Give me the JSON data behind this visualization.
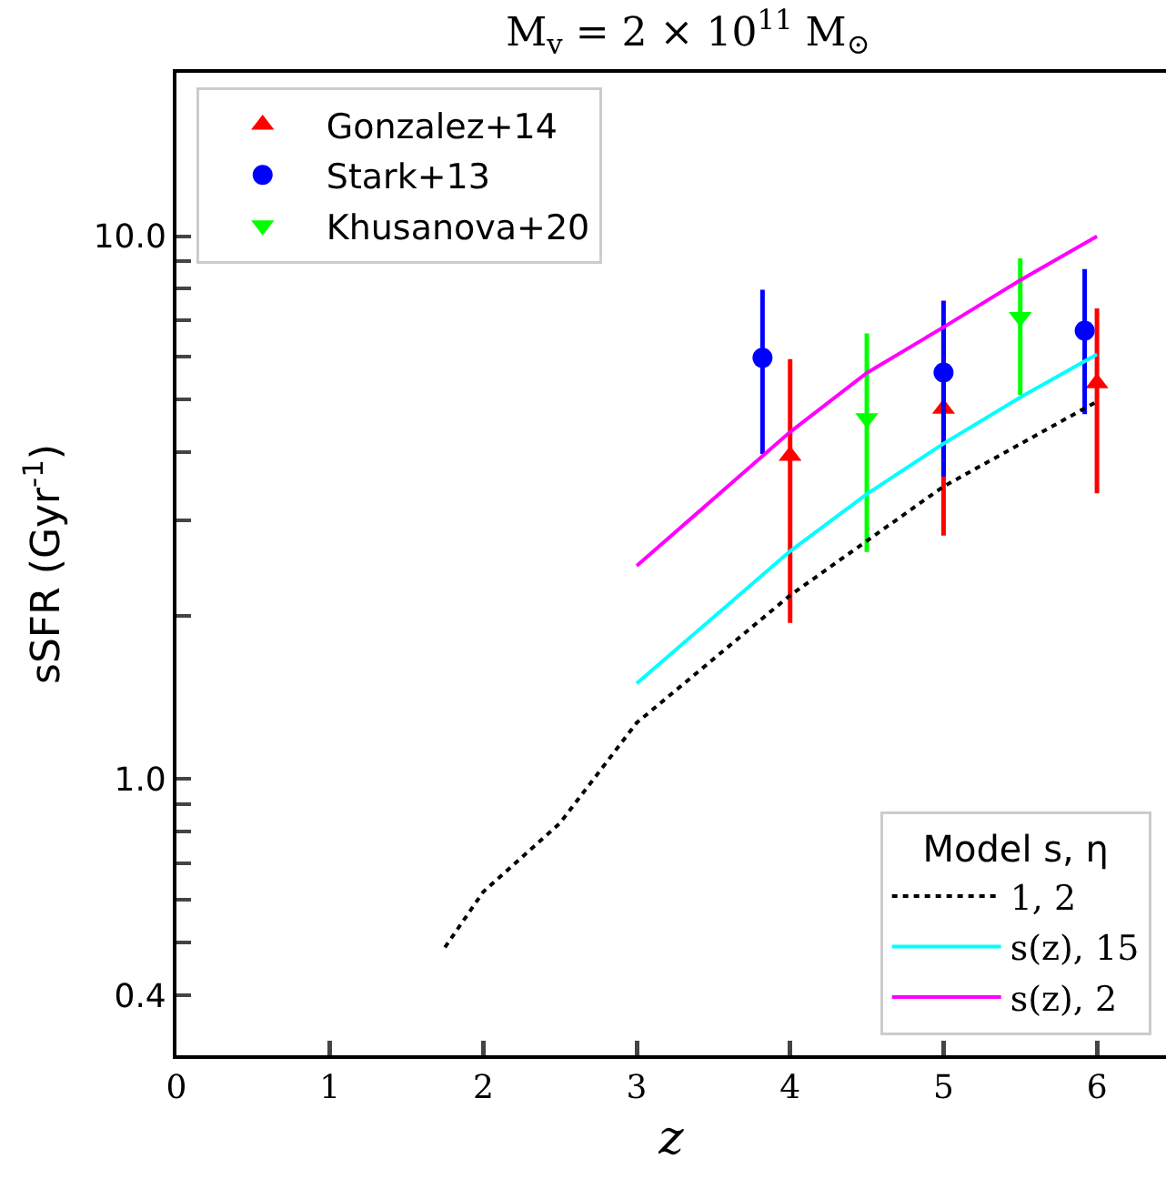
{
  "chart_data": {
    "type": "scatter",
    "title": "M$_{v}$ = 2 × 10$^{11}$ M$_{⊙}$",
    "xlabel": "z",
    "ylabel": "sSFR (Gyr$^{-1}$)",
    "legend_title": "Model s, η",
    "log": "y",
    "legend": "top left",
    "grid": false,
    "xlim": [
      0,
      6.45
    ],
    "xticks": [
      0,
      1,
      2,
      3,
      4,
      5,
      6
    ],
    "ylim": [
      0.31,
      20
    ],
    "yticks": [
      {
        "value": 0.4,
        "label": "0.4"
      },
      {
        "value": 0.5,
        "label": null
      },
      {
        "value": 0.6,
        "label": null
      },
      {
        "value": 0.7,
        "label": null
      },
      {
        "value": 0.8,
        "label": null
      },
      {
        "value": 0.9,
        "label": null
      },
      {
        "value": 1,
        "label": "1.0"
      },
      {
        "value": 2,
        "label": null
      },
      {
        "value": 3,
        "label": null
      },
      {
        "value": 4,
        "label": null
      },
      {
        "value": 5,
        "label": null
      },
      {
        "value": 6,
        "label": null
      },
      {
        "value": 7,
        "label": null
      },
      {
        "value": 8,
        "label": null
      },
      {
        "value": 9,
        "label": null
      },
      {
        "value": 10,
        "label": "10.0"
      }
    ],
    "series": [
      {
        "name": "Gonzalez+14",
        "type": "scatter",
        "marker": "triangle",
        "color": "#ff0000",
        "x": [
          4.0,
          5.0,
          6.0
        ],
        "values": [
          3.94,
          4.81,
          5.36
        ],
        "errors": [
          2.0,
          2.0,
          2.0
        ]
      },
      {
        "name": "Stark+13",
        "type": "scatter",
        "marker": "circle",
        "color": "#0000ff",
        "x": [
          3.82,
          5.0,
          5.92
        ],
        "values": [
          5.97,
          5.61,
          6.7
        ],
        "errors": [
          2.0,
          2.0,
          2.0
        ]
      },
      {
        "name": "Khusanova+20",
        "type": "scatter",
        "marker": "triangle-down",
        "color": "#00ff00",
        "x": [
          4.5,
          5.5
        ],
        "values": [
          4.62,
          7.1
        ],
        "errors": [
          2.0,
          2.0
        ]
      },
      {
        "name": "1, 2",
        "type": "line",
        "marker": "none",
        "line_style": "dotted",
        "color": "#000000",
        "x": [
          1.75,
          2,
          2.5,
          3,
          4,
          5,
          6
        ],
        "values": [
          0.49,
          0.62,
          0.83,
          1.27,
          2.18,
          3.46,
          4.96
        ]
      },
      {
        "name": "s(z), 15",
        "type": "line",
        "marker": "none",
        "line_style": "solid",
        "color": "#00ffff",
        "x": [
          3,
          4,
          4.5,
          5,
          5.5,
          6
        ],
        "values": [
          1.5,
          2.63,
          3.35,
          4.15,
          5.05,
          6.06
        ]
      },
      {
        "name": "s(z), 2",
        "type": "line",
        "marker": "none",
        "line_style": "solid",
        "color": "#ff00ff",
        "x": [
          3,
          4,
          4.5,
          5,
          5.5,
          6
        ],
        "values": [
          2.47,
          4.36,
          5.6,
          6.8,
          8.3,
          10.0
        ]
      }
    ]
  }
}
